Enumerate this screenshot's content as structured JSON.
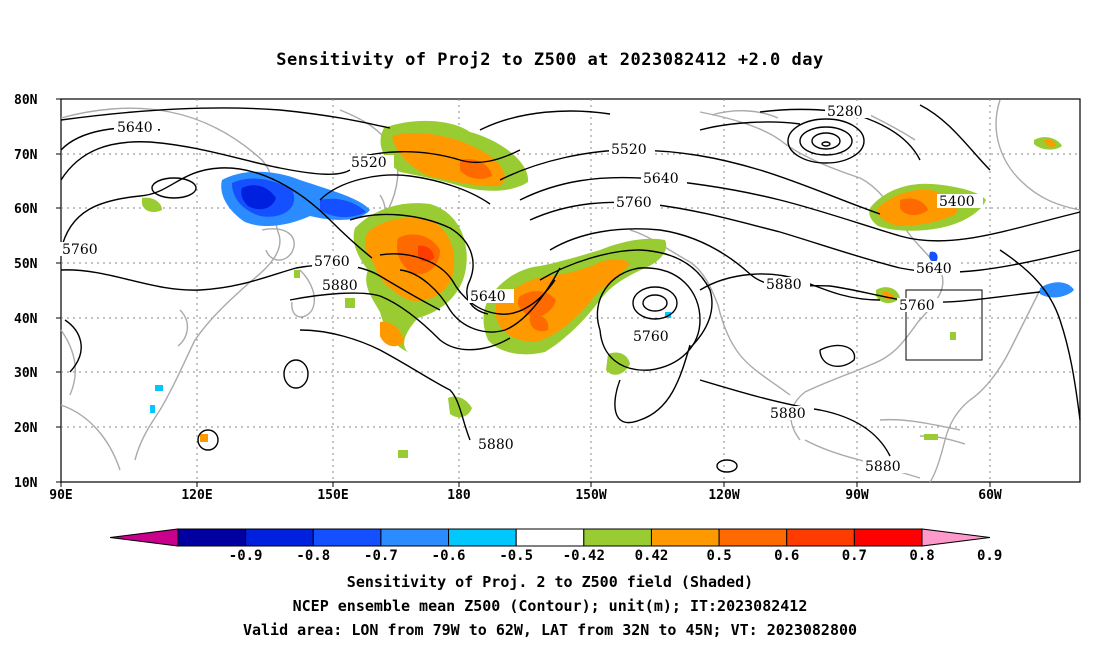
{
  "title": "Sensitivity of Proj2 to Z500 at 2023082412 +2.0 day",
  "lat_labels": [
    "80N",
    "70N",
    "60N",
    "50N",
    "40N",
    "30N",
    "20N",
    "10N"
  ],
  "lon_labels": [
    "90E",
    "120E",
    "150E",
    "180",
    "150W",
    "120W",
    "90W",
    "60W"
  ],
  "contour_labels": {
    "c5640a": "5640",
    "c5520a": "5520",
    "c5760a": "5760",
    "c5760b": "5760",
    "c5880a": "5880",
    "c5640b": "5640",
    "c5520b": "5520",
    "c5640c": "5640",
    "c5760c": "5760",
    "c5760d": "5760",
    "c5880b": "5880",
    "c5880c": "5880",
    "c5880d": "5880",
    "c5280": "5280",
    "c5400": "5400",
    "c5640d": "5640",
    "c5760e": "5760",
    "c5880e": "5880"
  },
  "colorbar": {
    "ticks": [
      "-0.9",
      "-0.8",
      "-0.7",
      "-0.6",
      "-0.5",
      "-0.42",
      "0.42",
      "0.5",
      "0.6",
      "0.7",
      "0.8",
      "0.9"
    ],
    "colors": [
      "#c8008c",
      "#0000a0",
      "#0020e0",
      "#1450ff",
      "#2a8cff",
      "#00c8ff",
      "#ffffff",
      "#99cc33",
      "#ff9900",
      "#ff6a00",
      "#ff3c00",
      "#ff0000",
      "#ff99cc"
    ]
  },
  "captions": {
    "line1": "Sensitivity of Proj. 2 to Z500 field (Shaded)",
    "line2": "NCEP ensemble mean Z500 (Contour); unit(m); IT:2023082412",
    "line3": "Valid area: LON from 79W to 62W, LAT from 32N to 45N; VT: 2023082800"
  }
}
